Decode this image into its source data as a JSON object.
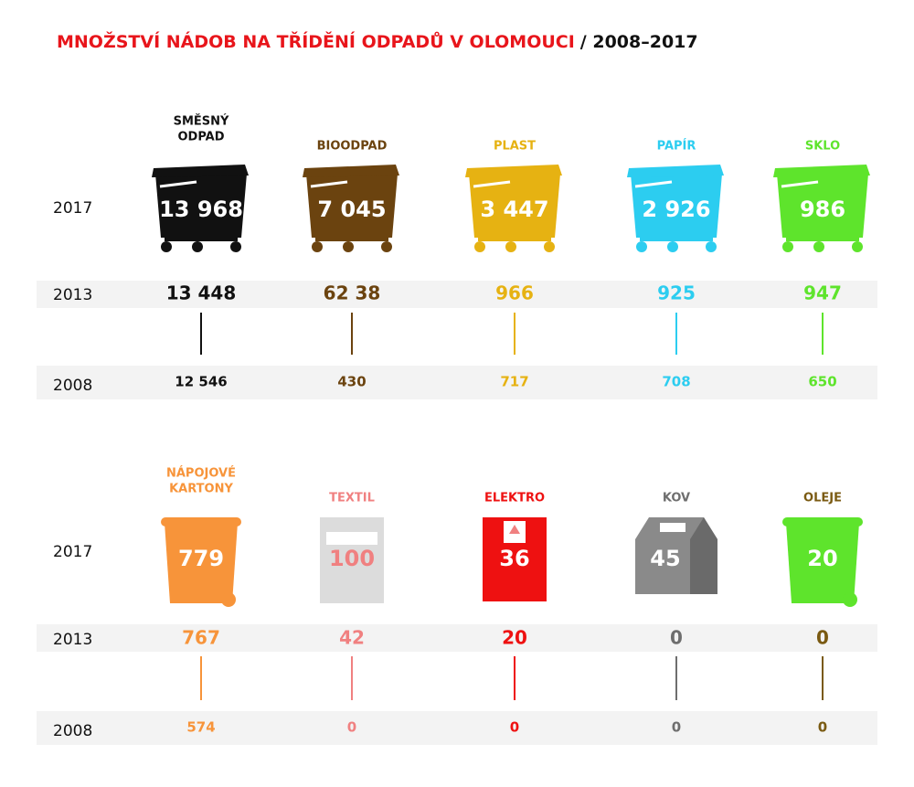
{
  "title": {
    "main": "MNOŽSTVÍ NÁDOB NA TŘÍDĚNÍ ODPADŮ V OLOMOUCI",
    "years": "/ 2008–2017"
  },
  "sections": [
    {
      "years": [
        "2017",
        "2013",
        "2008"
      ],
      "items": [
        {
          "label": [
            "SMĚSNÝ",
            "ODPAD"
          ],
          "color": "#111111",
          "values": [
            "13 968",
            "13 448",
            "12 546"
          ]
        },
        {
          "label": [
            "BIOODPAD"
          ],
          "color": "#6b430f",
          "values": [
            "7 045",
            "62 38",
            "430"
          ]
        },
        {
          "label": [
            "PLAST"
          ],
          "color": "#e6b212",
          "values": [
            "3 447",
            "966",
            "717"
          ]
        },
        {
          "label": [
            "PAPÍR"
          ],
          "color": "#2ccdf0",
          "values": [
            "2 926",
            "925",
            "708"
          ]
        },
        {
          "label": [
            "SKLO"
          ],
          "color": "#5ee42c",
          "values": [
            "986",
            "947",
            "650"
          ]
        }
      ]
    },
    {
      "years": [
        "2017",
        "2013",
        "2008"
      ],
      "items": [
        {
          "label": [
            "NÁPOJOVÉ",
            "KARTONY"
          ],
          "color": "#f7943a",
          "values": [
            "779",
            "767",
            "574"
          ]
        },
        {
          "label": [
            "TEXTIL"
          ],
          "color": "#f08080",
          "bin_color": "#dcdcdc",
          "bin_text_color": "#f08080",
          "values": [
            "100",
            "42",
            "0"
          ]
        },
        {
          "label": [
            "ELEKTRO"
          ],
          "color": "#ee1111",
          "values": [
            "36",
            "20",
            "0"
          ]
        },
        {
          "label": [
            "KOV"
          ],
          "color": "#6e6e6e",
          "bin_color": "#8a8a8a",
          "values": [
            "45",
            "0",
            "0"
          ]
        },
        {
          "label": [
            "OLEJE"
          ],
          "color": "#7a5a12",
          "bin_color": "#5ee42c",
          "values": [
            "20",
            "0",
            "0"
          ]
        }
      ]
    }
  ]
}
